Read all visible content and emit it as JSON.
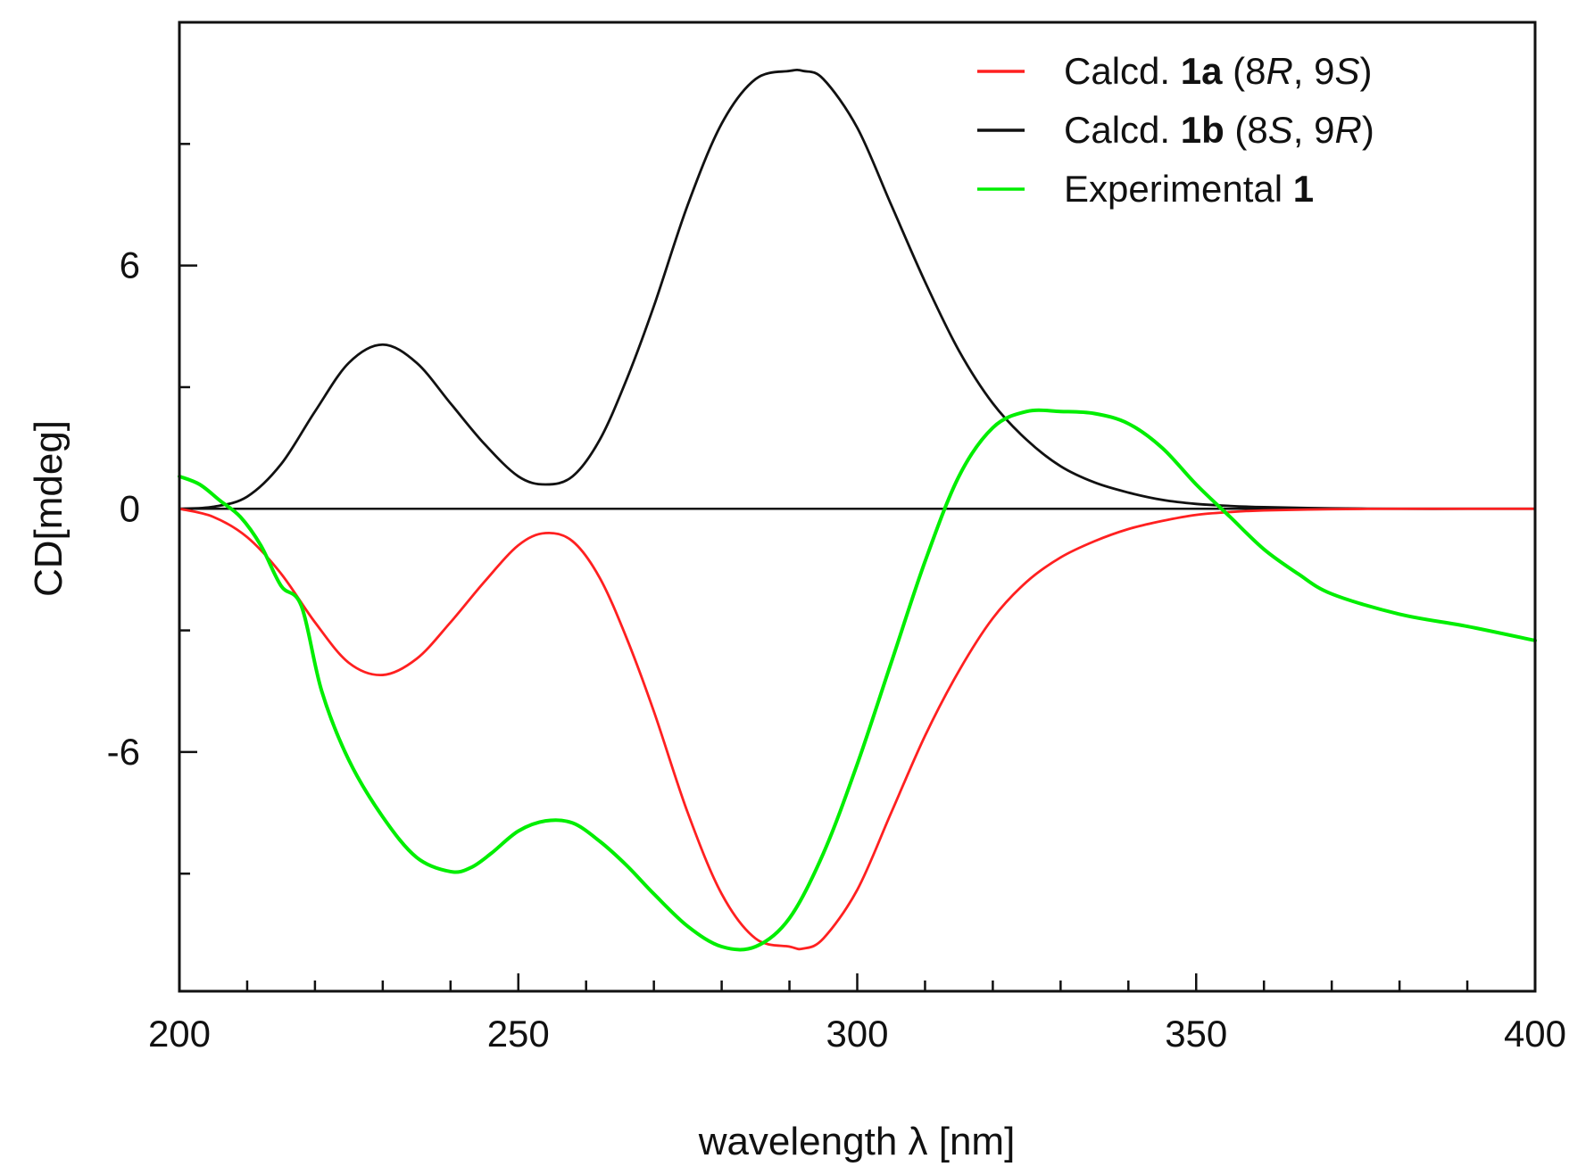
{
  "chart_data": {
    "type": "line",
    "xlabel": "wavelength λ [nm]",
    "ylabel": "CD[mdeg]",
    "xlim": [
      200,
      400
    ],
    "ylim": [
      -11.9,
      12
    ],
    "xticks": [
      200,
      250,
      300,
      350,
      400
    ],
    "xtick_labels": [
      "200",
      "250",
      "300",
      "350",
      "400"
    ],
    "yticks": [
      -6,
      0,
      6
    ],
    "ytick_labels": [
      "-6",
      "0",
      "6"
    ],
    "x_minor_step": 10,
    "y_minor_step": 3,
    "zero_line": true,
    "legend_position": "top-right",
    "series": [
      {
        "name": "Calcd. 1a (8R, 9S)",
        "legend_parts": [
          {
            "text": "Calcd. ",
            "style": "normal"
          },
          {
            "text": "1a",
            "style": "bold"
          },
          {
            "text": " (8",
            "style": "normal"
          },
          {
            "text": "R",
            "style": "italic"
          },
          {
            "text": ", 9",
            "style": "normal"
          },
          {
            "text": "S",
            "style": "italic"
          },
          {
            "text": ")",
            "style": "normal"
          }
        ],
        "color": "#ff2020",
        "x": [
          200,
          205,
          210,
          215,
          220,
          225,
          230,
          235,
          240,
          245,
          250,
          254,
          258,
          262,
          266,
          270,
          275,
          280,
          285,
          290,
          292,
          295,
          300,
          305,
          310,
          315,
          320,
          325,
          330,
          335,
          340,
          345,
          350,
          355,
          360,
          370,
          380,
          390,
          400
        ],
        "y": [
          0,
          -0.2,
          -0.7,
          -1.6,
          -2.8,
          -3.8,
          -4.1,
          -3.7,
          -2.8,
          -1.8,
          -0.9,
          -0.6,
          -0.8,
          -1.7,
          -3.2,
          -5.0,
          -7.5,
          -9.5,
          -10.6,
          -10.8,
          -10.85,
          -10.6,
          -9.4,
          -7.5,
          -5.6,
          -4.0,
          -2.7,
          -1.8,
          -1.2,
          -0.8,
          -0.5,
          -0.3,
          -0.15,
          -0.08,
          -0.04,
          -0.01,
          0,
          0,
          0
        ]
      },
      {
        "name": "Calcd. 1b (8S, 9R)",
        "legend_parts": [
          {
            "text": "Calcd. ",
            "style": "normal"
          },
          {
            "text": "1b",
            "style": "bold"
          },
          {
            "text": " (8",
            "style": "normal"
          },
          {
            "text": "S",
            "style": "italic"
          },
          {
            "text": ", 9",
            "style": "normal"
          },
          {
            "text": "R",
            "style": "italic"
          },
          {
            "text": ")",
            "style": "normal"
          }
        ],
        "color": "#111111",
        "x": [
          200,
          205,
          210,
          215,
          220,
          225,
          230,
          235,
          240,
          245,
          250,
          254,
          258,
          262,
          266,
          270,
          275,
          280,
          285,
          290,
          292,
          295,
          300,
          305,
          310,
          315,
          320,
          325,
          330,
          335,
          340,
          345,
          350,
          355,
          360,
          370,
          380,
          390,
          400
        ],
        "y": [
          0,
          0.05,
          0.3,
          1.1,
          2.4,
          3.6,
          4.05,
          3.6,
          2.6,
          1.6,
          0.8,
          0.6,
          0.8,
          1.7,
          3.2,
          5.0,
          7.5,
          9.5,
          10.6,
          10.8,
          10.8,
          10.6,
          9.4,
          7.5,
          5.6,
          3.9,
          2.6,
          1.7,
          1.05,
          0.65,
          0.4,
          0.22,
          0.12,
          0.07,
          0.04,
          0.01,
          0,
          0,
          0
        ]
      },
      {
        "name": "Experimental 1",
        "legend_parts": [
          {
            "text": "Experimental ",
            "style": "normal"
          },
          {
            "text": "1",
            "style": "bold"
          }
        ],
        "color": "#00ee00",
        "x": [
          200,
          203,
          206,
          209,
          212,
          215,
          218,
          221,
          225,
          230,
          235,
          240,
          243,
          246,
          250,
          254,
          258,
          262,
          266,
          270,
          275,
          280,
          285,
          290,
          295,
          300,
          305,
          310,
          315,
          320,
          325,
          330,
          335,
          340,
          345,
          350,
          355,
          360,
          365,
          370,
          380,
          390,
          400
        ],
        "y": [
          0.8,
          0.6,
          0.2,
          -0.2,
          -0.9,
          -1.9,
          -2.4,
          -4.5,
          -6.2,
          -7.6,
          -8.6,
          -8.95,
          -8.85,
          -8.5,
          -7.95,
          -7.7,
          -7.75,
          -8.2,
          -8.8,
          -9.5,
          -10.3,
          -10.8,
          -10.8,
          -10.1,
          -8.5,
          -6.3,
          -3.8,
          -1.3,
          0.8,
          2.0,
          2.4,
          2.4,
          2.35,
          2.1,
          1.5,
          0.6,
          -0.2,
          -1.0,
          -1.6,
          -2.1,
          -2.6,
          -2.9,
          -3.25
        ]
      }
    ]
  }
}
